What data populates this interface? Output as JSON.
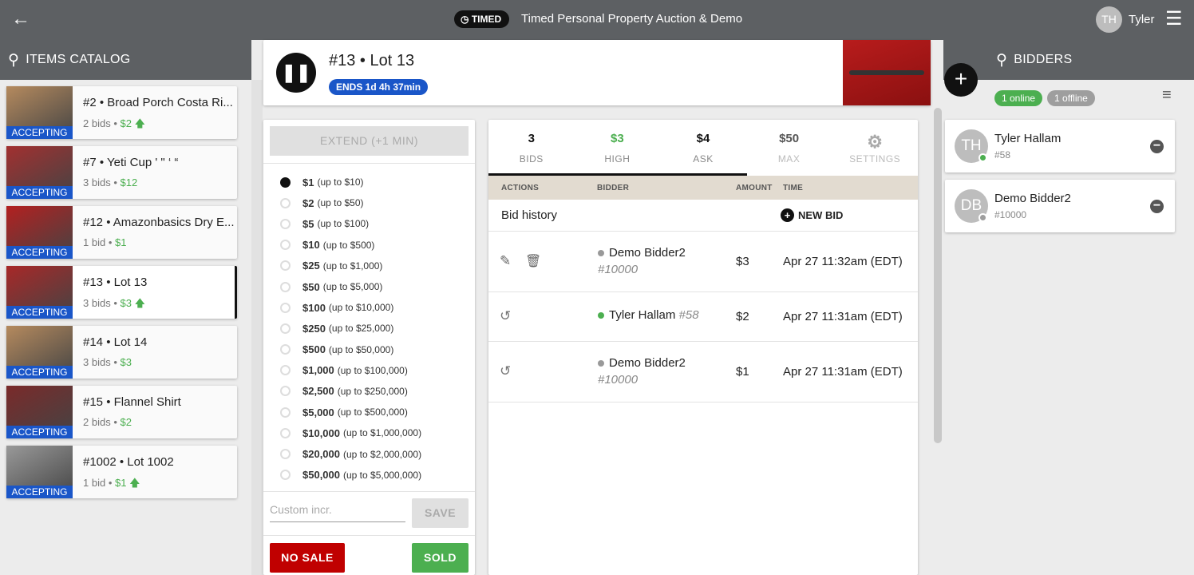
{
  "header": {
    "title": "Timed Personal Property Auction & Demo",
    "badge": "TIMED",
    "user_initials": "TH",
    "user_name": "Tyler"
  },
  "catalog": {
    "title": "ITEMS CATALOG",
    "items": [
      {
        "title": "#2 • Broad Porch Costa Ri...",
        "bids": "2 bids",
        "price": "$2",
        "up": true,
        "status": "ACCEPTING",
        "color": "#b58a5e"
      },
      {
        "title": "#7 • Yeti Cup ' \" ‘ “",
        "bids": "3 bids",
        "price": "$12",
        "up": false,
        "status": "ACCEPTING",
        "color": "#a23030"
      },
      {
        "title": "#12 • Amazonbasics Dry E...",
        "bids": "1 bid",
        "price": "$1",
        "up": false,
        "status": "ACCEPTING",
        "color": "#b32020"
      },
      {
        "title": "#13 • Lot 13",
        "bids": "3 bids",
        "price": "$3",
        "up": true,
        "status": "ACCEPTING",
        "color": "#a82828"
      },
      {
        "title": "#14 • Lot 14",
        "bids": "3 bids",
        "price": "$3",
        "up": false,
        "status": "ACCEPTING",
        "color": "#b58a5e"
      },
      {
        "title": "#15 • Flannel Shirt",
        "bids": "2 bids",
        "price": "$2",
        "up": false,
        "status": "ACCEPTING",
        "color": "#7a2a2a"
      },
      {
        "title": "#1002 • Lot 1002",
        "bids": "1 bid",
        "price": "$1",
        "up": true,
        "status": "ACCEPTING",
        "color": "#999999"
      }
    ]
  },
  "lot": {
    "title": "#13 • Lot 13",
    "ends": "ENDS 1d 4h 37min"
  },
  "increments": {
    "extend_label": "EXTEND (+1 MIN)",
    "items": [
      [
        "$1",
        "(up to $10)"
      ],
      [
        "$2",
        "(up to $50)"
      ],
      [
        "$5",
        "(up to $100)"
      ],
      [
        "$10",
        "(up to $500)"
      ],
      [
        "$25",
        "(up to $1,000)"
      ],
      [
        "$50",
        "(up to $5,000)"
      ],
      [
        "$100",
        "(up to $10,000)"
      ],
      [
        "$250",
        "(up to $25,000)"
      ],
      [
        "$500",
        "(up to $50,000)"
      ],
      [
        "$1,000",
        "(up to $100,000)"
      ],
      [
        "$2,500",
        "(up to $250,000)"
      ],
      [
        "$5,000",
        "(up to $500,000)"
      ],
      [
        "$10,000",
        "(up to $1,000,000)"
      ],
      [
        "$20,000",
        "(up to $2,000,000)"
      ],
      [
        "$50,000",
        "(up to $5,000,000)"
      ]
    ],
    "custom_placeholder": "Custom incr.",
    "save_label": "SAVE",
    "no_sale_label": "NO SALE",
    "sold_label": "SOLD"
  },
  "stats": [
    {
      "value": "3",
      "label": "BIDS"
    },
    {
      "value": "$3",
      "label": "HIGH"
    },
    {
      "value": "$4",
      "label": "ASK"
    },
    {
      "value": "$50",
      "label": "MAX"
    },
    {
      "value": "",
      "label": "SETTINGS"
    }
  ],
  "table": {
    "headers": [
      "ACTIONS",
      "BIDDER",
      "AMOUNT",
      "TIME"
    ],
    "history_label": "Bid history",
    "new_bid_label": "NEW BID",
    "rows": [
      {
        "bidder": "Demo Bidder2",
        "number": "#10000",
        "amount": "$3",
        "time": "Apr 27 11:32am (EDT)",
        "online": false,
        "actions": "edit"
      },
      {
        "bidder": "Tyler Hallam",
        "number": "#58",
        "amount": "$2",
        "time": "Apr 27 11:31am (EDT)",
        "online": true,
        "actions": "history"
      },
      {
        "bidder": "Demo Bidder2",
        "number": "#10000",
        "amount": "$1",
        "time": "Apr 27 11:31am (EDT)",
        "online": false,
        "actions": "history"
      }
    ]
  },
  "bidders": {
    "title": "BIDDERS",
    "online": "1 online",
    "offline": "1 offline",
    "items": [
      {
        "initials": "TH",
        "name": "Tyler Hallam",
        "number": "#58",
        "online": true
      },
      {
        "initials": "DB",
        "name": "Demo Bidder2",
        "number": "#10000",
        "online": false
      }
    ]
  },
  "colors": {
    "accent_blue": "#1a56c8",
    "green": "#4caf50",
    "red": "#c00000",
    "bar": "#5d6063"
  }
}
